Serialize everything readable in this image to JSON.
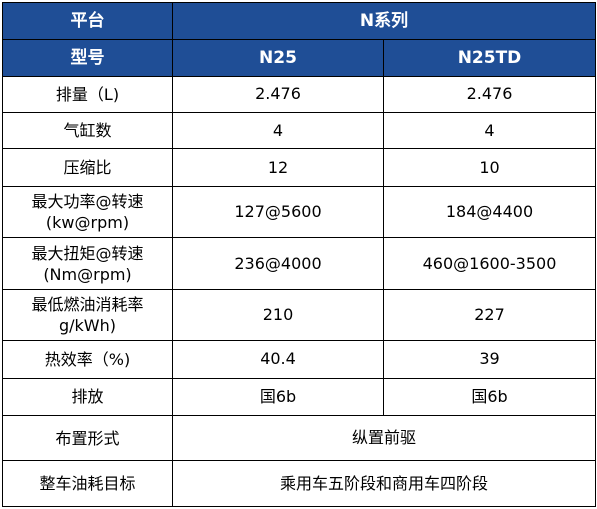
{
  "header": {
    "platform_label": "平台",
    "series_label": "N系列",
    "model_label": "型号",
    "models": [
      "N25",
      "N25TD"
    ]
  },
  "rows": [
    {
      "label": "排量（L)",
      "n25": "2.476",
      "n25td": "2.476"
    },
    {
      "label": "气缸数",
      "n25": "4",
      "n25td": "4"
    },
    {
      "label": "压缩比",
      "n25": "12",
      "n25td": "10"
    },
    {
      "label_line1": "最大功率@转速",
      "label_line2": "(kw@rpm)",
      "n25": "127@5600",
      "n25td": "184@4400"
    },
    {
      "label_line1": "最大扭矩@转速",
      "label_line2": "(Nm@rpm)",
      "n25": "236@4000",
      "n25td": "460@1600-3500"
    },
    {
      "label_line1": "最低燃油消耗率",
      "label_line2": "g/kWh)",
      "n25": "210",
      "n25td": "227"
    },
    {
      "label": "热效率（%)",
      "n25": "40.4",
      "n25td": "39"
    },
    {
      "label": "排放",
      "n25": "国6b",
      "n25td": "国6b"
    },
    {
      "label": "布置形式",
      "merged": "纵置前驱"
    },
    {
      "label": "整车油耗目标",
      "merged": "乘用车五阶段和商用车四阶段"
    }
  ],
  "colors": {
    "header_bg": "#1f4e96",
    "header_text": "#ffffff",
    "border": "#000000"
  }
}
